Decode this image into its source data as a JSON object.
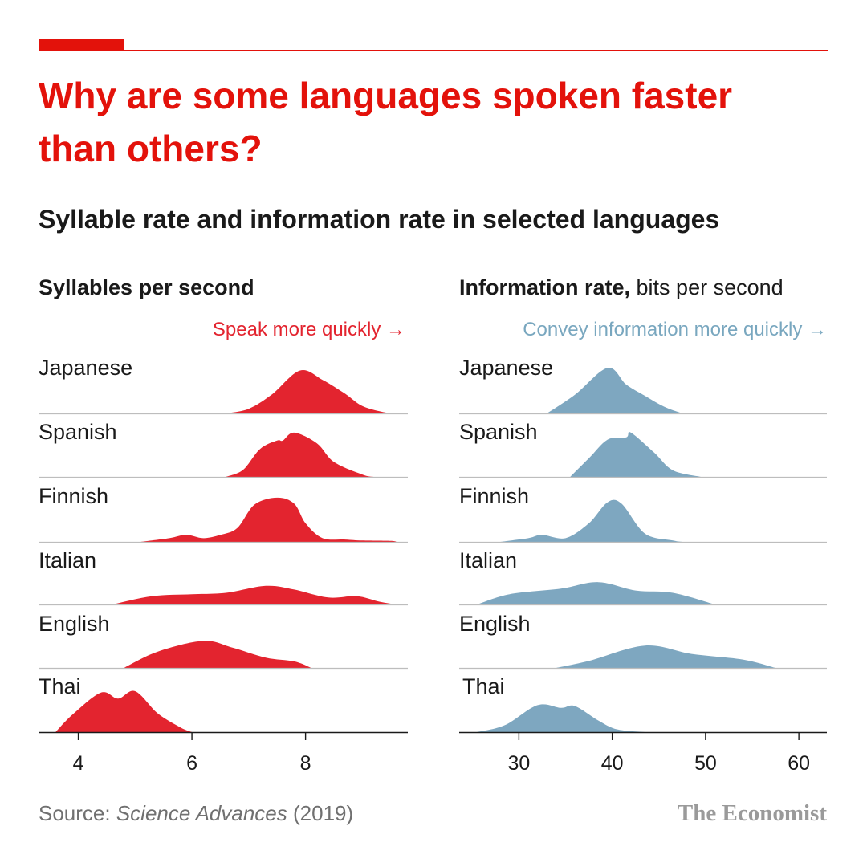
{
  "headline": "Why are some languages spoken faster than others?",
  "subtitle": "Syllable rate and information rate in selected languages",
  "source": {
    "prefix": "Source: ",
    "journal": "Science Advances",
    "suffix": " (2019)"
  },
  "brand": "The Economist",
  "colors": {
    "accent": "#e3120b",
    "red_fill": "#e3242f",
    "blue_fill": "#7ea7c0",
    "arrow_blue": "#79a7bf"
  },
  "chart_data": [
    {
      "type": "ridgeline",
      "title": "Syllables per second",
      "title_suffix": "",
      "annotation": "Speak more quickly →",
      "xlim": [
        3.3,
        9.8
      ],
      "ticks": [
        4,
        6,
        8
      ],
      "tick_labels": [
        "4",
        "6",
        "8"
      ],
      "color": "#e3242f",
      "series": [
        {
          "name": "Japanese",
          "points": [
            [
              6.6,
              0
            ],
            [
              7.0,
              0.1
            ],
            [
              7.4,
              0.4
            ],
            [
              7.9,
              0.92
            ],
            [
              8.3,
              0.72
            ],
            [
              8.7,
              0.42
            ],
            [
              9.0,
              0.16
            ],
            [
              9.4,
              0.02
            ],
            [
              9.6,
              0
            ]
          ]
        },
        {
          "name": "Spanish",
          "points": [
            [
              6.6,
              0
            ],
            [
              6.9,
              0.15
            ],
            [
              7.2,
              0.6
            ],
            [
              7.5,
              0.78
            ],
            [
              7.6,
              0.78
            ],
            [
              7.8,
              0.95
            ],
            [
              8.2,
              0.72
            ],
            [
              8.5,
              0.32
            ],
            [
              9.0,
              0.05
            ],
            [
              9.2,
              0
            ]
          ]
        },
        {
          "name": "Finnish",
          "points": [
            [
              5.1,
              0
            ],
            [
              5.6,
              0.08
            ],
            [
              5.9,
              0.15
            ],
            [
              6.2,
              0.08
            ],
            [
              6.5,
              0.15
            ],
            [
              6.8,
              0.3
            ],
            [
              7.1,
              0.8
            ],
            [
              7.5,
              0.95
            ],
            [
              7.8,
              0.82
            ],
            [
              8.0,
              0.4
            ],
            [
              8.3,
              0.08
            ],
            [
              8.7,
              0.05
            ],
            [
              9.0,
              0.03
            ],
            [
              9.5,
              0.02
            ],
            [
              9.6,
              0
            ]
          ]
        },
        {
          "name": "Italian",
          "points": [
            [
              4.6,
              0
            ],
            [
              5.3,
              0.18
            ],
            [
              6.0,
              0.22
            ],
            [
              6.6,
              0.25
            ],
            [
              7.3,
              0.4
            ],
            [
              7.8,
              0.32
            ],
            [
              8.4,
              0.15
            ],
            [
              8.9,
              0.18
            ],
            [
              9.3,
              0.06
            ],
            [
              9.6,
              0
            ]
          ]
        },
        {
          "name": "English",
          "points": [
            [
              4.8,
              0
            ],
            [
              5.4,
              0.35
            ],
            [
              6.2,
              0.58
            ],
            [
              6.7,
              0.44
            ],
            [
              7.3,
              0.22
            ],
            [
              7.8,
              0.14
            ],
            [
              8.1,
              0
            ]
          ]
        },
        {
          "name": "Thai",
          "points": [
            [
              3.6,
              0
            ],
            [
              3.9,
              0.38
            ],
            [
              4.4,
              0.85
            ],
            [
              4.7,
              0.72
            ],
            [
              5.0,
              0.88
            ],
            [
              5.4,
              0.4
            ],
            [
              5.8,
              0.1
            ],
            [
              6.0,
              0
            ]
          ]
        }
      ]
    },
    {
      "type": "ridgeline",
      "title": "Information rate,",
      "title_suffix": " bits per second",
      "annotation": "Convey information more quickly →",
      "xlim": [
        23.6,
        63
      ],
      "ticks": [
        30,
        40,
        50,
        60
      ],
      "tick_labels": [
        "30",
        "40",
        "50",
        "60"
      ],
      "color": "#7ea7c0",
      "series": [
        {
          "name": "Japanese",
          "points": [
            [
              33.0,
              0
            ],
            [
              36.0,
              0.4
            ],
            [
              39.5,
              0.98
            ],
            [
              41.5,
              0.62
            ],
            [
              43.5,
              0.38
            ],
            [
              45.5,
              0.15
            ],
            [
              47.5,
              0
            ]
          ]
        },
        {
          "name": "Spanish",
          "points": [
            [
              35.5,
              0
            ],
            [
              37.5,
              0.4
            ],
            [
              39.5,
              0.8
            ],
            [
              41.5,
              0.85
            ],
            [
              42.0,
              0.95
            ],
            [
              44.5,
              0.52
            ],
            [
              46.5,
              0.14
            ],
            [
              49.5,
              0
            ]
          ]
        },
        {
          "name": "Finnish",
          "points": [
            [
              28.0,
              0
            ],
            [
              31.0,
              0.08
            ],
            [
              32.5,
              0.15
            ],
            [
              35.0,
              0.08
            ],
            [
              37.5,
              0.4
            ],
            [
              39.5,
              0.85
            ],
            [
              41.0,
              0.82
            ],
            [
              43.5,
              0.18
            ],
            [
              46.5,
              0.03
            ],
            [
              47.5,
              0
            ]
          ]
        },
        {
          "name": "Italian",
          "points": [
            [
              25.5,
              0
            ],
            [
              29.0,
              0.22
            ],
            [
              34.5,
              0.34
            ],
            [
              38.5,
              0.48
            ],
            [
              42.5,
              0.3
            ],
            [
              46.5,
              0.25
            ],
            [
              51.0,
              0
            ]
          ]
        },
        {
          "name": "English",
          "points": [
            [
              34.0,
              0
            ],
            [
              37.5,
              0.15
            ],
            [
              43.5,
              0.48
            ],
            [
              48.5,
              0.3
            ],
            [
              54.0,
              0.18
            ],
            [
              57.5,
              0
            ]
          ]
        },
        {
          "name": "Thai",
          "points": [
            [
              25.5,
              0
            ],
            [
              28.5,
              0.15
            ],
            [
              32.0,
              0.58
            ],
            [
              34.5,
              0.52
            ],
            [
              36.0,
              0.56
            ],
            [
              38.5,
              0.25
            ],
            [
              40.5,
              0.06
            ],
            [
              43.5,
              0
            ]
          ]
        }
      ]
    }
  ]
}
